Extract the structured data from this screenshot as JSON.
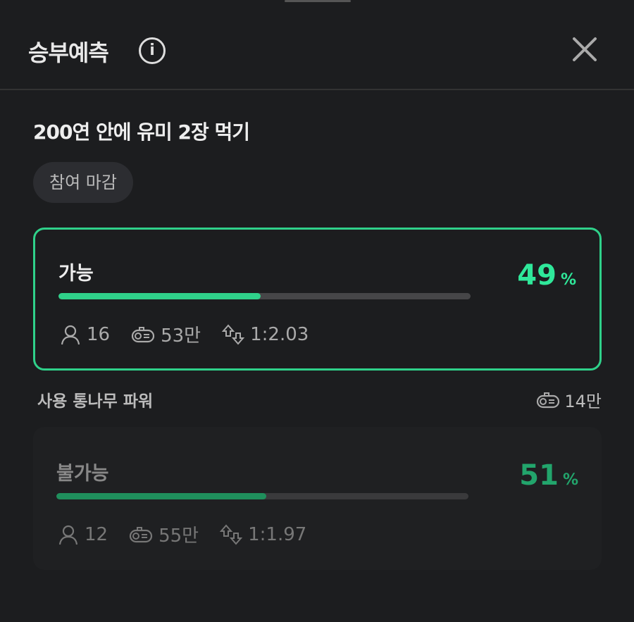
{
  "header": {
    "title": "승부예측",
    "info_icon": "info-icon",
    "close_icon": "close-icon"
  },
  "question": "200연 안에 유미 2장 먹기",
  "status_badge": "참여 마감",
  "accent_color": "#2fd18a",
  "options": [
    {
      "label": "가능",
      "percent": "49",
      "percent_sign": "%",
      "participants": "16",
      "points": "53만",
      "ratio": "1:2.03",
      "selected": true,
      "fill": 49
    },
    {
      "label": "불가능",
      "percent": "51",
      "percent_sign": "%",
      "participants": "12",
      "points": "55만",
      "ratio": "1:1.97",
      "selected": false,
      "fill": 51
    }
  ],
  "used_power": {
    "label": "사용 통나무 파워",
    "value": "14만"
  }
}
